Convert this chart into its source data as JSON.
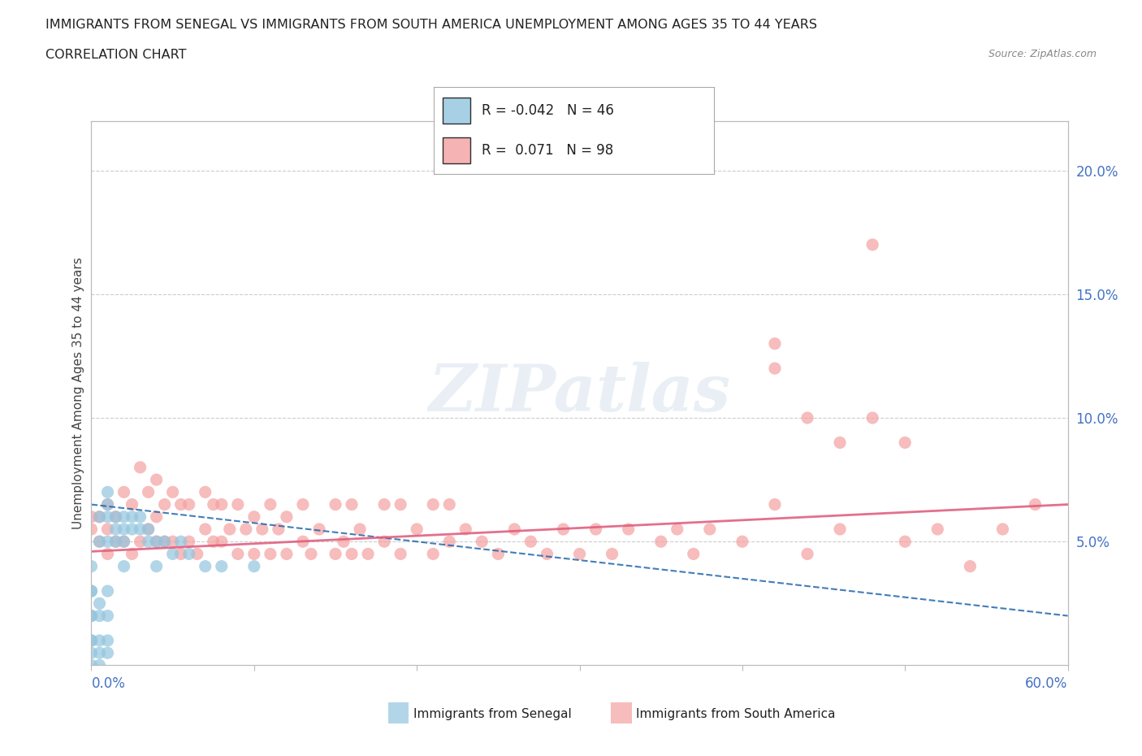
{
  "title_line1": "IMMIGRANTS FROM SENEGAL VS IMMIGRANTS FROM SOUTH AMERICA UNEMPLOYMENT AMONG AGES 35 TO 44 YEARS",
  "title_line2": "CORRELATION CHART",
  "source_text": "Source: ZipAtlas.com",
  "ylabel": "Unemployment Among Ages 35 to 44 years",
  "xlim": [
    0,
    0.6
  ],
  "ylim": [
    0,
    0.22
  ],
  "yticks": [
    0.05,
    0.1,
    0.15,
    0.2
  ],
  "ytick_labels": [
    "5.0%",
    "10.0%",
    "15.0%",
    "20.0%"
  ],
  "xtick_labels_left": "0.0%",
  "xtick_labels_right": "60.0%",
  "senegal_color": "#92c5de",
  "south_america_color": "#f4a0a0",
  "senegal_R": -0.042,
  "senegal_N": 46,
  "south_america_R": 0.071,
  "south_america_N": 98,
  "watermark": "ZIPatlas",
  "legend_label_senegal": "Immigrants from Senegal",
  "legend_label_south_america": "Immigrants from South America",
  "background_color": "#ffffff",
  "grid_color": "#cccccc",
  "axis_color": "#bbbbbb",
  "tick_color": "#4472c4",
  "senegal_line_color": "#2166ac",
  "south_america_line_color": "#e06080",
  "x_sen": [
    0.0,
    0.0,
    0.0,
    0.0,
    0.0,
    0.0,
    0.0,
    0.0,
    0.0,
    0.005,
    0.005,
    0.005,
    0.005,
    0.005,
    0.005,
    0.005,
    0.01,
    0.01,
    0.01,
    0.01,
    0.01,
    0.01,
    0.01,
    0.01,
    0.015,
    0.015,
    0.015,
    0.02,
    0.02,
    0.02,
    0.02,
    0.025,
    0.025,
    0.03,
    0.03,
    0.035,
    0.035,
    0.04,
    0.04,
    0.045,
    0.05,
    0.055,
    0.06,
    0.07,
    0.08,
    0.1
  ],
  "y_sen": [
    0.0,
    0.005,
    0.01,
    0.01,
    0.02,
    0.02,
    0.03,
    0.03,
    0.04,
    0.0,
    0.005,
    0.01,
    0.02,
    0.025,
    0.05,
    0.06,
    0.005,
    0.01,
    0.02,
    0.03,
    0.05,
    0.06,
    0.065,
    0.07,
    0.05,
    0.055,
    0.06,
    0.04,
    0.05,
    0.055,
    0.06,
    0.055,
    0.06,
    0.055,
    0.06,
    0.05,
    0.055,
    0.04,
    0.05,
    0.05,
    0.045,
    0.05,
    0.045,
    0.04,
    0.04,
    0.04
  ],
  "x_sa": [
    0.0,
    0.0,
    0.005,
    0.005,
    0.01,
    0.01,
    0.01,
    0.015,
    0.015,
    0.02,
    0.02,
    0.025,
    0.025,
    0.03,
    0.03,
    0.035,
    0.035,
    0.04,
    0.04,
    0.04,
    0.045,
    0.045,
    0.05,
    0.05,
    0.055,
    0.055,
    0.06,
    0.06,
    0.065,
    0.07,
    0.07,
    0.075,
    0.075,
    0.08,
    0.08,
    0.085,
    0.09,
    0.09,
    0.095,
    0.1,
    0.1,
    0.105,
    0.11,
    0.11,
    0.115,
    0.12,
    0.12,
    0.13,
    0.13,
    0.135,
    0.14,
    0.15,
    0.15,
    0.155,
    0.16,
    0.16,
    0.165,
    0.17,
    0.18,
    0.18,
    0.19,
    0.19,
    0.2,
    0.21,
    0.21,
    0.22,
    0.22,
    0.23,
    0.24,
    0.25,
    0.26,
    0.27,
    0.28,
    0.29,
    0.3,
    0.31,
    0.32,
    0.33,
    0.35,
    0.36,
    0.37,
    0.38,
    0.4,
    0.42,
    0.44,
    0.46,
    0.48,
    0.5,
    0.52,
    0.54,
    0.56,
    0.58,
    0.44,
    0.46,
    0.48,
    0.5,
    0.42,
    0.42
  ],
  "y_sa": [
    0.055,
    0.06,
    0.05,
    0.06,
    0.045,
    0.055,
    0.065,
    0.05,
    0.06,
    0.05,
    0.07,
    0.045,
    0.065,
    0.05,
    0.08,
    0.055,
    0.07,
    0.05,
    0.06,
    0.075,
    0.05,
    0.065,
    0.05,
    0.07,
    0.045,
    0.065,
    0.05,
    0.065,
    0.045,
    0.055,
    0.07,
    0.05,
    0.065,
    0.05,
    0.065,
    0.055,
    0.045,
    0.065,
    0.055,
    0.045,
    0.06,
    0.055,
    0.045,
    0.065,
    0.055,
    0.045,
    0.06,
    0.05,
    0.065,
    0.045,
    0.055,
    0.045,
    0.065,
    0.05,
    0.045,
    0.065,
    0.055,
    0.045,
    0.05,
    0.065,
    0.045,
    0.065,
    0.055,
    0.045,
    0.065,
    0.05,
    0.065,
    0.055,
    0.05,
    0.045,
    0.055,
    0.05,
    0.045,
    0.055,
    0.045,
    0.055,
    0.045,
    0.055,
    0.05,
    0.055,
    0.045,
    0.055,
    0.05,
    0.065,
    0.045,
    0.055,
    0.17,
    0.05,
    0.055,
    0.04,
    0.055,
    0.065,
    0.1,
    0.09,
    0.1,
    0.09,
    0.12,
    0.13
  ],
  "sen_line_x": [
    0.0,
    0.6
  ],
  "sen_line_y": [
    0.065,
    0.02
  ],
  "sa_line_x": [
    0.0,
    0.6
  ],
  "sa_line_y": [
    0.046,
    0.065
  ]
}
